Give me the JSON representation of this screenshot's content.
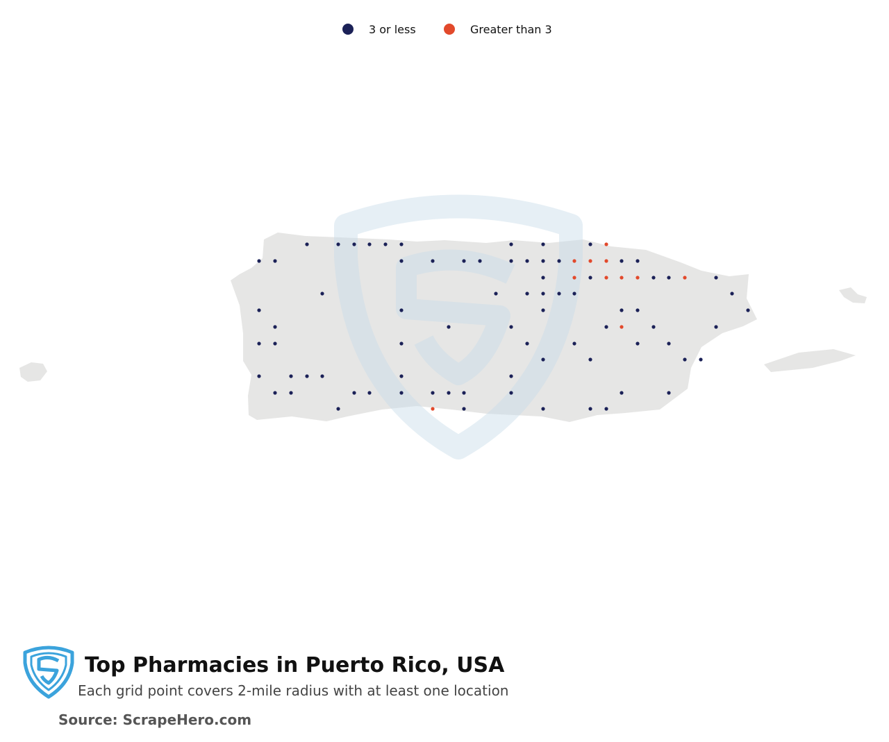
{
  "legend": {
    "items": [
      {
        "label": "3 or less",
        "color": "#1b2157"
      },
      {
        "label": "Greater than 3",
        "color": "#e2492b"
      }
    ]
  },
  "title": "Top Pharmacies in Puerto Rico, USA",
  "subtitle": "Each grid point covers 2-mile radius with at least one location",
  "source": "Source: ScrapeHero.com"
}
